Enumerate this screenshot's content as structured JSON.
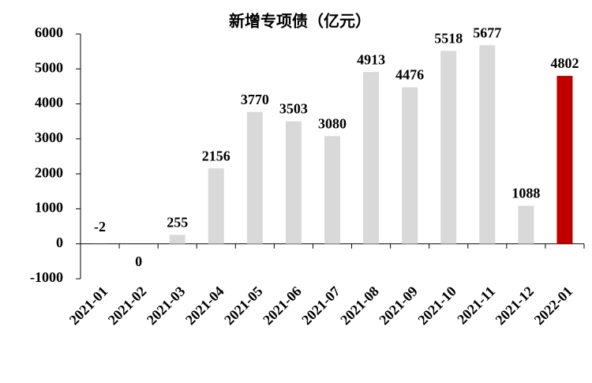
{
  "chart_data": {
    "type": "bar",
    "title": "新增专项债（亿元）",
    "categories": [
      "2021-01",
      "2021-02",
      "2021-03",
      "2021-04",
      "2021-05",
      "2021-06",
      "2021-07",
      "2021-08",
      "2021-09",
      "2021-10",
      "2021-11",
      "2021-12",
      "2022-01"
    ],
    "values": [
      -2,
      0,
      255,
      2156,
      3770,
      3503,
      3080,
      4913,
      4476,
      5518,
      5677,
      1088,
      4802
    ],
    "colors": [
      "#d9d9d9",
      "#d9d9d9",
      "#d9d9d9",
      "#d9d9d9",
      "#d9d9d9",
      "#d9d9d9",
      "#d9d9d9",
      "#d9d9d9",
      "#d9d9d9",
      "#d9d9d9",
      "#d9d9d9",
      "#d9d9d9",
      "#c00000"
    ],
    "ylim": [
      -1000,
      6000
    ],
    "yticks": [
      -1000,
      0,
      1000,
      2000,
      3000,
      4000,
      5000,
      6000
    ],
    "grid": false
  }
}
